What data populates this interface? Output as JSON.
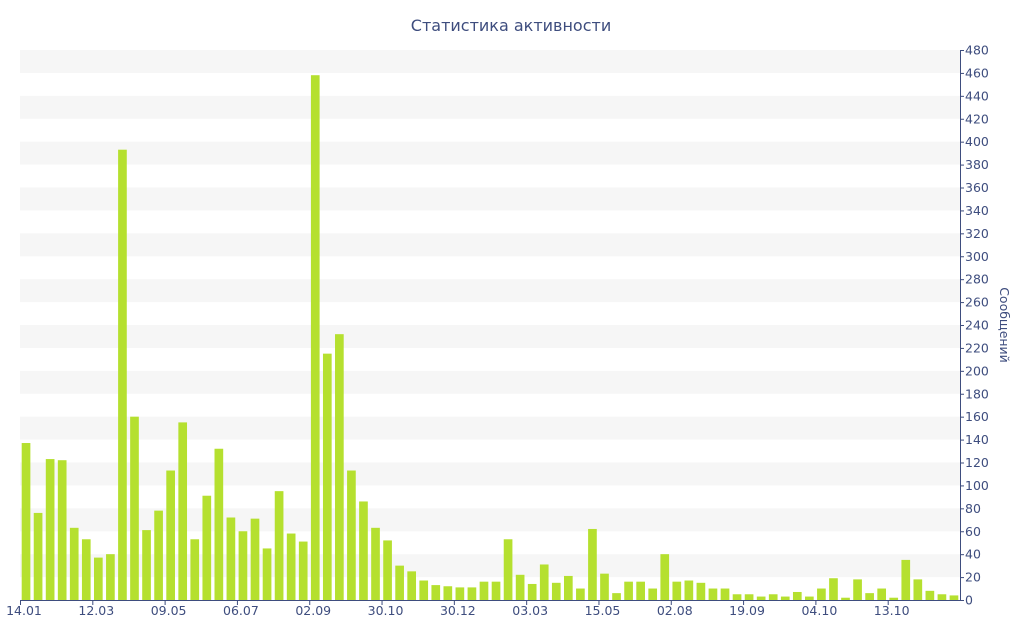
{
  "chart_data": {
    "type": "bar",
    "title": "Статистика активности",
    "xlabel": "",
    "ylabel": "Сообщений",
    "ylim": [
      0,
      480
    ],
    "y_ticks": [
      0,
      20,
      40,
      60,
      80,
      100,
      120,
      140,
      160,
      180,
      200,
      220,
      240,
      260,
      280,
      300,
      320,
      340,
      360,
      380,
      400,
      420,
      440,
      460,
      480
    ],
    "y_axis_side": "right",
    "grid": "alternating horizontal bands",
    "x_tick_labels": [
      "14.01",
      "12.03",
      "09.05",
      "06.07",
      "02.09",
      "30.10",
      "30.12",
      "03.03",
      "15.05",
      "02.08",
      "19.09",
      "04.10",
      "13.10"
    ],
    "values": [
      137,
      76,
      123,
      122,
      63,
      53,
      37,
      40,
      393,
      160,
      61,
      78,
      113,
      155,
      53,
      91,
      132,
      72,
      60,
      71,
      45,
      95,
      58,
      51,
      458,
      215,
      232,
      113,
      86,
      63,
      52,
      30,
      25,
      17,
      13,
      12,
      11,
      11,
      16,
      16,
      53,
      22,
      14,
      31,
      15,
      21,
      10,
      62,
      23,
      6,
      16,
      16,
      10,
      40,
      16,
      17,
      15,
      10,
      10,
      5,
      5,
      3,
      5,
      3,
      7,
      3,
      10,
      19,
      2,
      18,
      6,
      10,
      2,
      35,
      18,
      8,
      5,
      4
    ],
    "bar_color": "#b5e02f",
    "band_color": "#f6f6f6",
    "axis_color": "#3e4d7e"
  }
}
